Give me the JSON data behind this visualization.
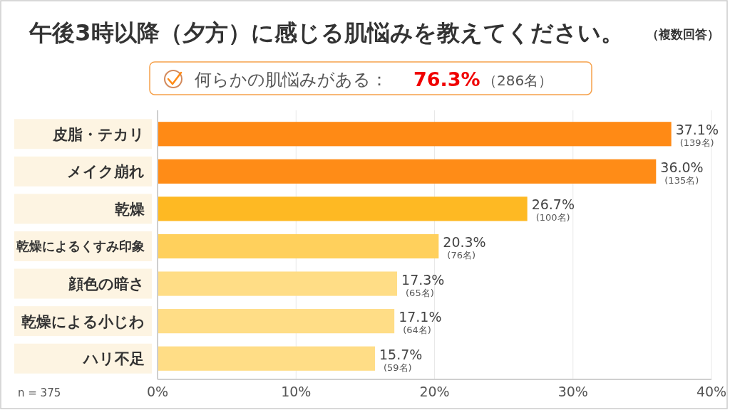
{
  "chart_data": {
    "type": "bar",
    "orientation": "horizontal",
    "title": "午後3時以降（夕方）に感じる肌悩みを教えてください。",
    "subtitle": "（複数回答）",
    "categories": [
      "皮脂・テカリ",
      "メイク崩れ",
      "乾燥",
      "乾燥によるくすみ印象",
      "顔色の暗さ",
      "乾燥による小じわ",
      "ハリ不足"
    ],
    "values": [
      37.1,
      36.0,
      26.7,
      20.3,
      17.3,
      17.1,
      15.7
    ],
    "colors": [
      "#ff8a15",
      "#ff8c17",
      "#feb923",
      "#ffd05c",
      "#ffdd86",
      "#ffdd86",
      "#ffdd86"
    ],
    "xlim": [
      0,
      40
    ],
    "xticks": [
      {
        "value": 0,
        "label": "0%"
      },
      {
        "value": 10,
        "label": "10%"
      },
      {
        "value": 20,
        "label": "20%"
      },
      {
        "value": 30,
        "label": "30%"
      },
      {
        "value": 40,
        "label": "40%"
      }
    ],
    "grid": "x",
    "value_labels": [
      "37.1%",
      "36.0%",
      "26.7%",
      "20.3%",
      "17.3%",
      "17.1%",
      "15.7%"
    ],
    "annotations": [
      "何らかの肌悩みがある：",
      "76.3%",
      "（286名）",
      "n = 375",
      {
        "text": "(139名)",
        "x": 37.1,
        "y": "皮脂・テカリ"
      },
      {
        "text": "(135名)",
        "x": 36.0,
        "y": "メイク崩れ"
      },
      {
        "text": "(100名)",
        "x": 26.7,
        "y": "乾燥"
      },
      {
        "text": "(76名)",
        "x": 20.3,
        "y": "乾燥によるくすみ印象"
      },
      {
        "text": "(65名)",
        "x": 17.3,
        "y": "顔色の暗さ"
      },
      {
        "text": "(64名)",
        "x": 17.1,
        "y": "乾燥による小じわ"
      },
      {
        "text": "(59名)",
        "x": 15.7,
        "y": "ハリ不足"
      }
    ]
  }
}
